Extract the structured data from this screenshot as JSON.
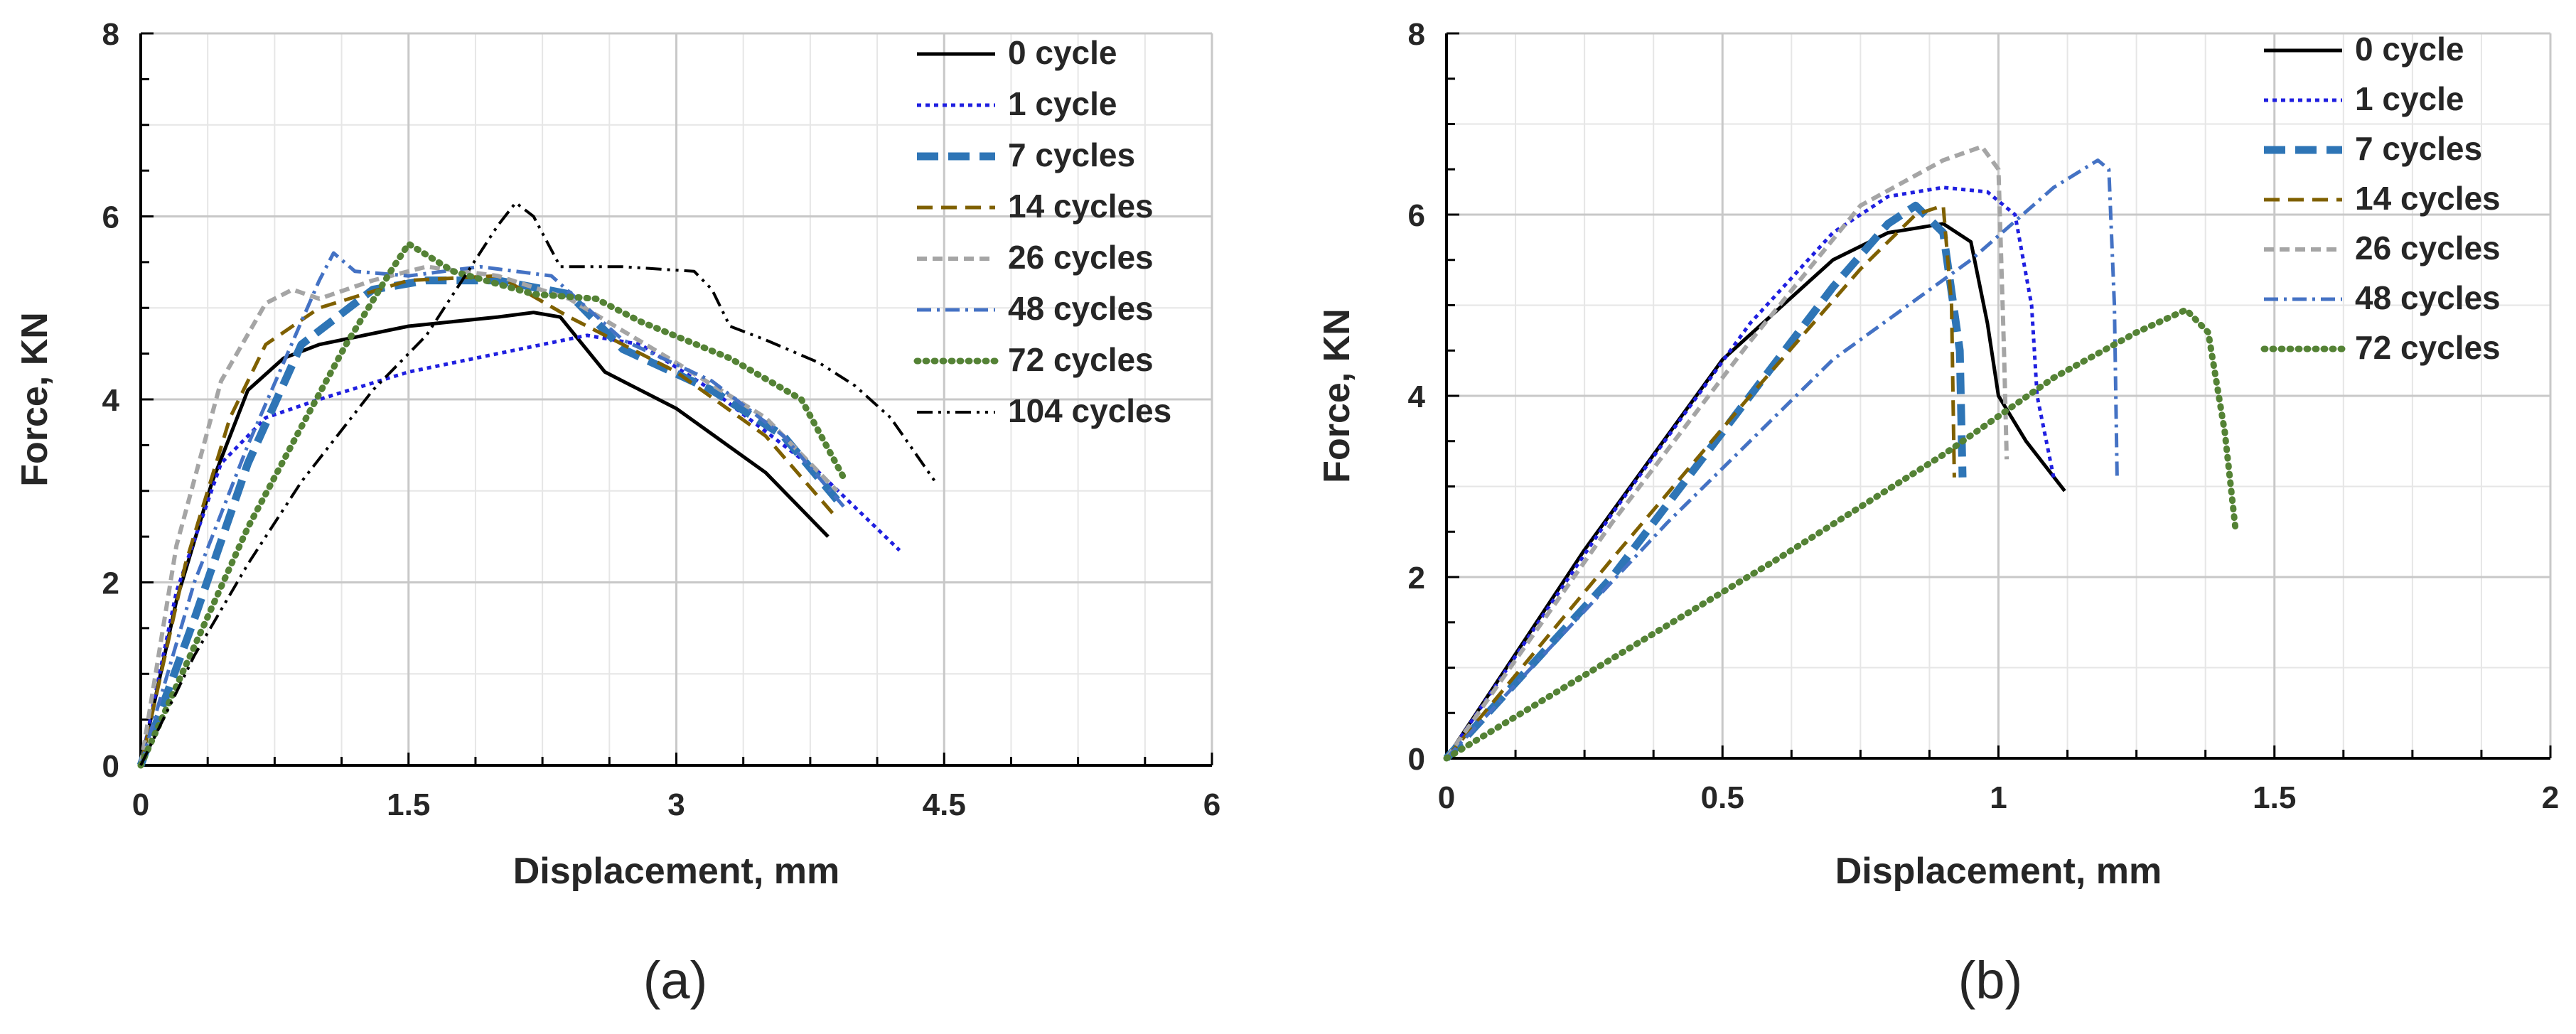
{
  "chart_data": [
    {
      "type": "line",
      "panel_label": "(a)",
      "xlabel": "Displacement, mm",
      "ylabel": "Force, KN",
      "xlim": [
        0,
        6
      ],
      "ylim": [
        0,
        8
      ],
      "xticks": [
        "0",
        "1.5",
        "3",
        "4.5",
        "6"
      ],
      "yticks": [
        "0",
        "2",
        "4",
        "6",
        "8"
      ],
      "grid": true,
      "legend_position": "top-right",
      "series": [
        {
          "name": "0 cycle",
          "color": "#000000",
          "dash": "solid",
          "width": 5,
          "points": [
            [
              0,
              0
            ],
            [
              0.2,
              1.8
            ],
            [
              0.4,
              3.1
            ],
            [
              0.6,
              4.1
            ],
            [
              0.8,
              4.45
            ],
            [
              1.0,
              4.6
            ],
            [
              1.5,
              4.8
            ],
            [
              2.0,
              4.9
            ],
            [
              2.2,
              4.95
            ],
            [
              2.35,
              4.9
            ],
            [
              2.6,
              4.3
            ],
            [
              3.0,
              3.9
            ],
            [
              3.5,
              3.2
            ],
            [
              3.85,
              2.5
            ]
          ]
        },
        {
          "name": "1 cycle",
          "color": "#1f1fe0",
          "dash": "6 6",
          "width": 5,
          "points": [
            [
              0,
              0
            ],
            [
              0.2,
              1.9
            ],
            [
              0.45,
              3.3
            ],
            [
              0.7,
              3.8
            ],
            [
              1.0,
              4.0
            ],
            [
              1.5,
              4.3
            ],
            [
              2.0,
              4.5
            ],
            [
              2.5,
              4.7
            ],
            [
              2.8,
              4.6
            ],
            [
              3.2,
              4.1
            ],
            [
              3.8,
              3.2
            ],
            [
              4.25,
              2.35
            ]
          ]
        },
        {
          "name": "7 cycles",
          "color": "#2e75b6",
          "dash": "30 14",
          "width": 11,
          "points": [
            [
              0,
              0
            ],
            [
              0.3,
              1.6
            ],
            [
              0.6,
              3.3
            ],
            [
              0.9,
              4.6
            ],
            [
              1.3,
              5.2
            ],
            [
              1.6,
              5.3
            ],
            [
              2.0,
              5.3
            ],
            [
              2.4,
              5.15
            ],
            [
              2.7,
              4.55
            ],
            [
              3.2,
              4.1
            ],
            [
              3.6,
              3.6
            ],
            [
              3.9,
              2.9
            ]
          ]
        },
        {
          "name": "14 cycles",
          "color": "#7f6000",
          "dash": "22 12",
          "width": 5,
          "points": [
            [
              0,
              0
            ],
            [
              0.25,
              2.2
            ],
            [
              0.5,
              3.8
            ],
            [
              0.7,
              4.6
            ],
            [
              1.0,
              5.0
            ],
            [
              1.5,
              5.3
            ],
            [
              2.0,
              5.35
            ],
            [
              2.4,
              4.9
            ],
            [
              3.0,
              4.3
            ],
            [
              3.5,
              3.6
            ],
            [
              3.9,
              2.7
            ]
          ]
        },
        {
          "name": "26 cycles",
          "color": "#a5a5a5",
          "dash": "14 8",
          "width": 6,
          "points": [
            [
              0,
              0
            ],
            [
              0.2,
              2.4
            ],
            [
              0.45,
              4.2
            ],
            [
              0.7,
              5.05
            ],
            [
              0.85,
              5.2
            ],
            [
              1.0,
              5.1
            ],
            [
              1.3,
              5.3
            ],
            [
              1.6,
              5.45
            ],
            [
              2.0,
              5.35
            ],
            [
              2.4,
              5.1
            ],
            [
              3.0,
              4.4
            ],
            [
              3.5,
              3.8
            ],
            [
              3.9,
              3.0
            ]
          ]
        },
        {
          "name": "48 cycles",
          "color": "#4472c4",
          "dash": "20 8 4 8",
          "width": 5,
          "points": [
            [
              0,
              0
            ],
            [
              0.3,
              2.0
            ],
            [
              0.6,
              3.5
            ],
            [
              0.8,
              4.4
            ],
            [
              1.0,
              5.3
            ],
            [
              1.08,
              5.6
            ],
            [
              1.2,
              5.4
            ],
            [
              1.5,
              5.35
            ],
            [
              1.9,
              5.45
            ],
            [
              2.3,
              5.35
            ],
            [
              2.7,
              4.65
            ],
            [
              3.2,
              4.2
            ],
            [
              3.6,
              3.6
            ],
            [
              3.95,
              2.8
            ]
          ]
        },
        {
          "name": "72 cycles",
          "color": "#548235",
          "dash": "2 10",
          "width": 9,
          "points": [
            [
              0,
              0
            ],
            [
              0.3,
              1.3
            ],
            [
              0.6,
              2.6
            ],
            [
              0.9,
              3.7
            ],
            [
              1.15,
              4.6
            ],
            [
              1.4,
              5.4
            ],
            [
              1.5,
              5.7
            ],
            [
              1.75,
              5.4
            ],
            [
              2.2,
              5.15
            ],
            [
              2.55,
              5.1
            ],
            [
              2.8,
              4.85
            ],
            [
              3.3,
              4.45
            ],
            [
              3.7,
              4.0
            ],
            [
              3.95,
              3.1
            ]
          ]
        },
        {
          "name": "104 cycles",
          "color": "#000000",
          "dash": "22 8 4 8 4 8",
          "width": 4,
          "points": [
            [
              0,
              0
            ],
            [
              0.3,
              1.2
            ],
            [
              0.6,
              2.2
            ],
            [
              0.9,
              3.1
            ],
            [
              1.3,
              4.1
            ],
            [
              1.6,
              4.7
            ],
            [
              1.8,
              5.3
            ],
            [
              2.0,
              5.9
            ],
            [
              2.1,
              6.15
            ],
            [
              2.2,
              6.0
            ],
            [
              2.35,
              5.45
            ],
            [
              2.7,
              5.45
            ],
            [
              3.1,
              5.4
            ],
            [
              3.2,
              5.2
            ],
            [
              3.3,
              4.8
            ],
            [
              3.5,
              4.65
            ],
            [
              3.8,
              4.4
            ],
            [
              4.0,
              4.15
            ],
            [
              4.2,
              3.8
            ],
            [
              4.45,
              3.1
            ]
          ]
        }
      ]
    },
    {
      "type": "line",
      "panel_label": "(b)",
      "xlabel": "Displacement, mm",
      "ylabel": "Force, KN",
      "xlim": [
        0,
        2
      ],
      "ylim": [
        0,
        8
      ],
      "xticks": [
        "0",
        "0.5",
        "1",
        "1.5",
        "2"
      ],
      "yticks": [
        "0",
        "2",
        "4",
        "6",
        "8"
      ],
      "grid": true,
      "legend_position": "top-right",
      "series": [
        {
          "name": "0 cycle",
          "color": "#000000",
          "dash": "solid",
          "width": 5,
          "points": [
            [
              0,
              0
            ],
            [
              0.25,
              2.3
            ],
            [
              0.5,
              4.4
            ],
            [
              0.7,
              5.5
            ],
            [
              0.8,
              5.8
            ],
            [
              0.9,
              5.9
            ],
            [
              0.95,
              5.7
            ],
            [
              0.98,
              4.8
            ],
            [
              1.0,
              4.0
            ],
            [
              1.05,
              3.5
            ],
            [
              1.12,
              2.95
            ]
          ]
        },
        {
          "name": "1 cycle",
          "color": "#1f1fe0",
          "dash": "6 6",
          "width": 5,
          "points": [
            [
              0,
              0
            ],
            [
              0.3,
              2.7
            ],
            [
              0.55,
              4.8
            ],
            [
              0.7,
              5.8
            ],
            [
              0.8,
              6.2
            ],
            [
              0.9,
              6.3
            ],
            [
              0.98,
              6.25
            ],
            [
              1.03,
              6.0
            ],
            [
              1.06,
              5.0
            ],
            [
              1.07,
              4.0
            ],
            [
              1.1,
              3.1
            ]
          ]
        },
        {
          "name": "7 cycles",
          "color": "#2e75b6",
          "dash": "30 14",
          "width": 11,
          "points": [
            [
              0,
              0
            ],
            [
              0.3,
              2.0
            ],
            [
              0.5,
              3.6
            ],
            [
              0.7,
              5.2
            ],
            [
              0.8,
              5.9
            ],
            [
              0.85,
              6.1
            ],
            [
              0.9,
              5.8
            ],
            [
              0.93,
              4.5
            ],
            [
              0.935,
              3.1
            ]
          ]
        },
        {
          "name": "14 cycles",
          "color": "#7f6000",
          "dash": "22 12",
          "width": 5,
          "points": [
            [
              0,
              0
            ],
            [
              0.3,
              2.2
            ],
            [
              0.55,
              4.0
            ],
            [
              0.75,
              5.4
            ],
            [
              0.85,
              6.0
            ],
            [
              0.9,
              6.1
            ],
            [
              0.915,
              5.0
            ],
            [
              0.92,
              3.1
            ]
          ]
        },
        {
          "name": "26 cycles",
          "color": "#a5a5a5",
          "dash": "14 8",
          "width": 6,
          "points": [
            [
              0,
              0
            ],
            [
              0.3,
              2.6
            ],
            [
              0.55,
              4.6
            ],
            [
              0.75,
              6.1
            ],
            [
              0.9,
              6.6
            ],
            [
              0.97,
              6.75
            ],
            [
              1.0,
              6.5
            ],
            [
              1.01,
              4.5
            ],
            [
              1.015,
              3.3
            ]
          ]
        },
        {
          "name": "48 cycles",
          "color": "#4472c4",
          "dash": "20 8 4 8",
          "width": 5,
          "points": [
            [
              0,
              0
            ],
            [
              0.4,
              2.6
            ],
            [
              0.7,
              4.4
            ],
            [
              0.95,
              5.5
            ],
            [
              1.1,
              6.3
            ],
            [
              1.18,
              6.6
            ],
            [
              1.2,
              6.5
            ],
            [
              1.21,
              5.0
            ],
            [
              1.215,
              3.1
            ]
          ]
        },
        {
          "name": "72 cycles",
          "color": "#548235",
          "dash": "2 10",
          "width": 9,
          "points": [
            [
              0,
              0
            ],
            [
              0.3,
              1.1
            ],
            [
              0.6,
              2.2
            ],
            [
              0.9,
              3.35
            ],
            [
              1.1,
              4.2
            ],
            [
              1.25,
              4.7
            ],
            [
              1.34,
              4.95
            ],
            [
              1.38,
              4.7
            ],
            [
              1.41,
              3.6
            ],
            [
              1.43,
              2.5
            ]
          ]
        }
      ]
    }
  ],
  "legend_labels_a": [
    "0 cycle",
    "1 cycle",
    "7 cycles",
    "14 cycles",
    "26 cycles",
    "48 cycles",
    "72 cycles",
    "104 cycles"
  ],
  "legend_labels_b": [
    "0 cycle",
    "1 cycle",
    "7 cycles",
    "14 cycles",
    "26 cycles",
    "48 cycles",
    "72 cycles"
  ]
}
